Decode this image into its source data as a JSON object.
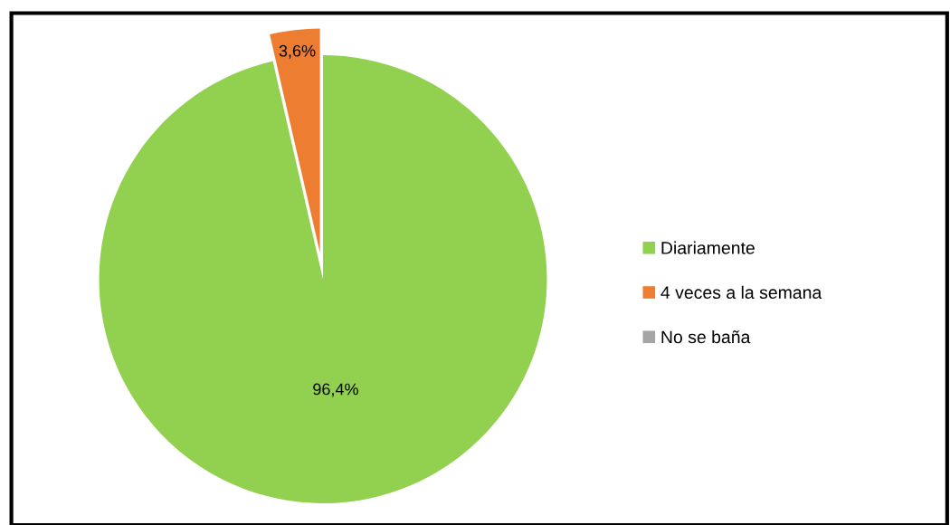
{
  "chart_data": {
    "type": "pie",
    "categories": [
      "Diariamente",
      "4 veces a la semana",
      "No se baña"
    ],
    "values": [
      96.4,
      3.6,
      0
    ],
    "colors": [
      "#92d050",
      "#ed7d31",
      "#a5a5a5"
    ],
    "value_labels": [
      "96,4%",
      "3,6%",
      null
    ],
    "legend": "right"
  }
}
